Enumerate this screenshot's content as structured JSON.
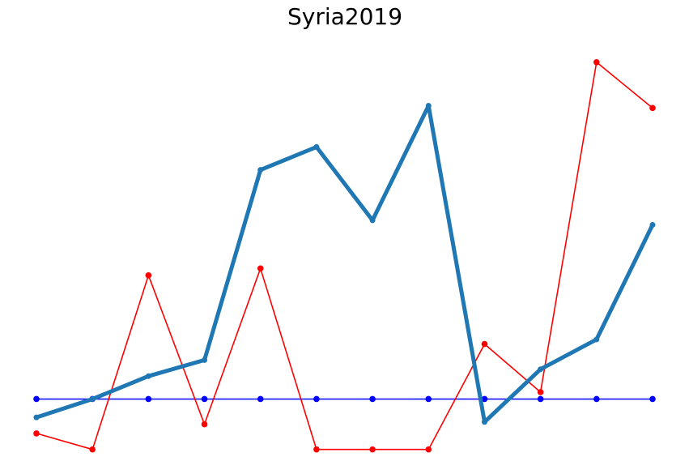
{
  "chart_data": {
    "type": "line",
    "title": "Syria2019",
    "xlabel": "",
    "ylabel": "",
    "axes_visible": false,
    "grid": false,
    "x": [
      0,
      1,
      2,
      3,
      4,
      5,
      6,
      7,
      8,
      9,
      10,
      11
    ],
    "ylim": [
      0,
      9.3
    ],
    "series": [
      {
        "color": "#1f77b4",
        "line_style": "thick",
        "values": [
          0.9,
          1.3,
          1.8,
          2.15,
          6.3,
          6.8,
          5.2,
          7.7,
          0.8,
          1.95,
          2.6,
          5.1
        ]
      },
      {
        "color": "#ff0000",
        "line_style": "thin",
        "values": [
          0.55,
          0.2,
          4.0,
          0.75,
          4.15,
          0.2,
          0.2,
          0.2,
          2.5,
          1.45,
          8.65,
          7.65
        ]
      },
      {
        "color": "#0000ff",
        "line_style": "thin",
        "values": [
          1.3,
          1.3,
          1.3,
          1.3,
          1.3,
          1.3,
          1.3,
          1.3,
          1.3,
          1.3,
          1.3,
          1.3
        ]
      }
    ]
  }
}
